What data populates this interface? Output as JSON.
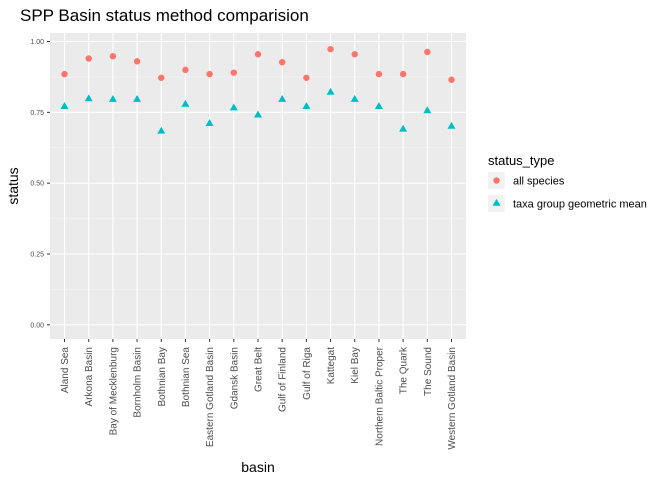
{
  "chart_data": {
    "type": "scatter",
    "title": "SPP Basin status method comparision",
    "xlabel": "basin",
    "ylabel": "status",
    "ylim": [
      -0.05,
      1.03
    ],
    "y_ticks": [
      0.0,
      0.25,
      0.5,
      0.75,
      1.0
    ],
    "y_tick_labels": [
      "0.00",
      "0.25",
      "0.50",
      "0.75",
      "1.00"
    ],
    "grid": true,
    "legend_position": "right",
    "legend_title": "status_type",
    "categories": [
      "Aland Sea",
      "Arkona Basin",
      "Bay of Mecklenburg",
      "Bornholm Basin",
      "Bothnian Bay",
      "Bothnian Sea",
      "Eastern Gotland Basin",
      "Gdansk Basin",
      "Great Belt",
      "Gulf of Finland",
      "Gulf of Riga",
      "Kattegat",
      "Kiel Bay",
      "Northern Baltic Proper",
      "The Quark",
      "The Sound",
      "Western Gotland Basin"
    ],
    "series": [
      {
        "name": "all species",
        "marker": "circle",
        "color": "#F8766D",
        "values": [
          0.885,
          0.94,
          0.948,
          0.93,
          0.872,
          0.9,
          0.885,
          0.89,
          0.955,
          0.927,
          0.872,
          0.973,
          0.955,
          0.885,
          0.885,
          0.963,
          0.865
        ]
      },
      {
        "name": "taxa group geometric mean",
        "marker": "triangle",
        "color": "#00BFC4",
        "values": [
          0.77,
          0.797,
          0.795,
          0.795,
          0.683,
          0.778,
          0.71,
          0.765,
          0.74,
          0.795,
          0.77,
          0.82,
          0.795,
          0.77,
          0.69,
          0.755,
          0.7
        ]
      }
    ]
  }
}
